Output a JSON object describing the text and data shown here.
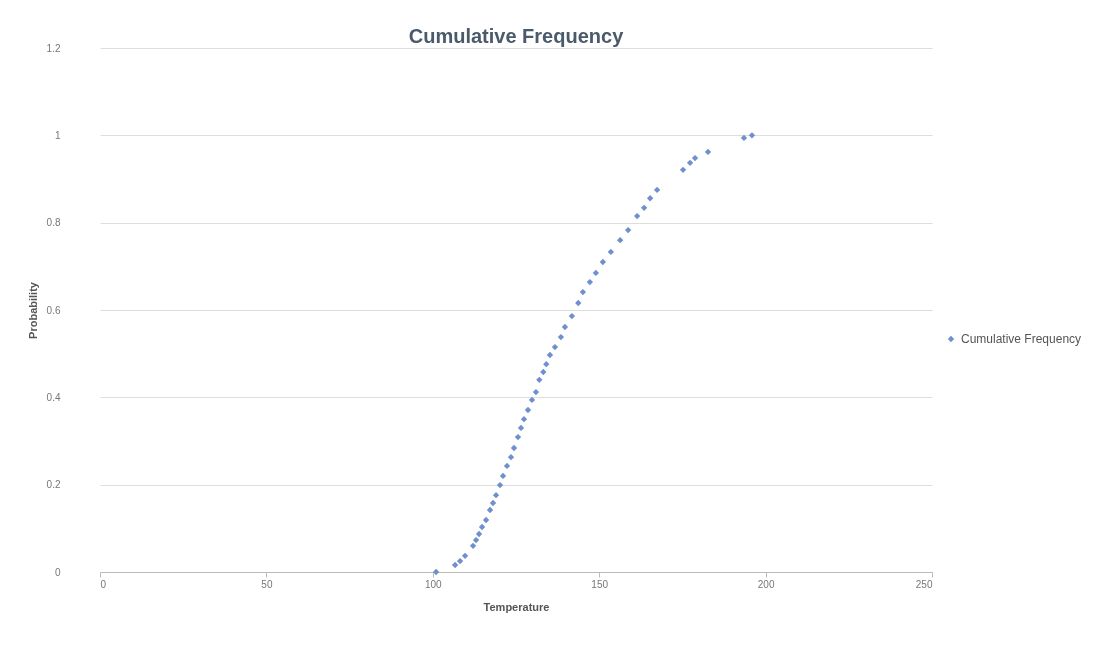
{
  "chart_data": {
    "type": "scatter",
    "title": "Cumulative Frequency",
    "xlabel": "Temperature",
    "ylabel": "Probability",
    "xlim": [
      0,
      250
    ],
    "xticks": [
      0,
      50,
      100,
      150,
      200,
      250
    ],
    "ylim": [
      0,
      1.2
    ],
    "yticks": [
      0,
      0.2,
      0.4,
      0.6,
      0.8,
      1,
      1.2
    ],
    "grid": "y",
    "legend": "right",
    "marker": "diamond",
    "series": [
      {
        "name": "Cumulative Frequency",
        "color": "#6f8fcf",
        "x": [
          101,
          106.7,
          108.2,
          109.7,
          112.1,
          113,
          113.9,
          114.8,
          116,
          117.2,
          118.1,
          119,
          120.2,
          121.1,
          122.3,
          123.5,
          124.4,
          125.6,
          126.5,
          127.4,
          128.6,
          129.8,
          131,
          132,
          133.2,
          134.1,
          135.2,
          136.7,
          138.5,
          139.7,
          141.8,
          143.7,
          145.1,
          147.2,
          149,
          151.1,
          153.5,
          156.3,
          158.7,
          161.4,
          163.5,
          165.3,
          167.4,
          175.2,
          177.3,
          178.8,
          182.7,
          193.5,
          195.9
        ],
        "values": [
          0,
          0.016,
          0.025,
          0.037,
          0.06,
          0.073,
          0.087,
          0.103,
          0.119,
          0.142,
          0.158,
          0.176,
          0.199,
          0.22,
          0.243,
          0.263,
          0.284,
          0.309,
          0.33,
          0.35,
          0.371,
          0.394,
          0.412,
          0.44,
          0.458,
          0.476,
          0.497,
          0.515,
          0.538,
          0.561,
          0.586,
          0.616,
          0.641,
          0.664,
          0.685,
          0.71,
          0.733,
          0.76,
          0.783,
          0.815,
          0.834,
          0.856,
          0.875,
          0.921,
          0.937,
          0.948,
          0.962,
          0.994,
          1
        ]
      }
    ]
  }
}
